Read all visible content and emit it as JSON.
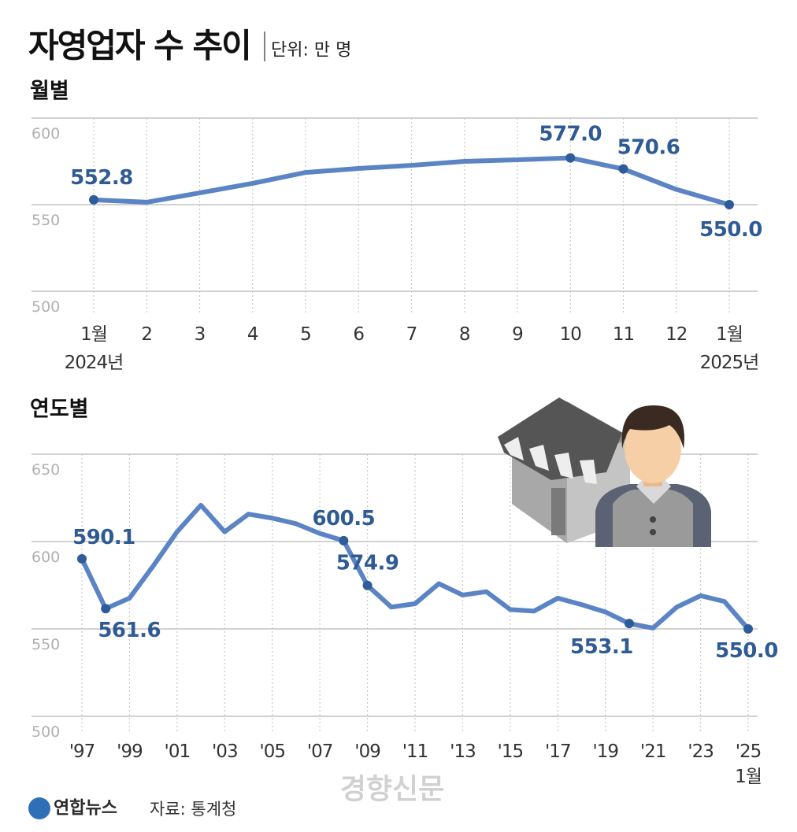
{
  "title": "자영업자 수 추이",
  "unit": "단위: 만 명",
  "source": "자료: 통계청",
  "logo": "연합뉴스",
  "watermark": "경향신문",
  "chart_data": [
    {
      "type": "line",
      "title": "월별",
      "categories": [
        "1월",
        "2",
        "3",
        "4",
        "5",
        "6",
        "7",
        "8",
        "9",
        "10",
        "11",
        "12",
        "1월"
      ],
      "year_labels": [
        "2024년",
        "2025년"
      ],
      "series": [
        {
          "color": "#5b84c4",
          "values": [
            552.8,
            551.4,
            556.8,
            562.3,
            568.6,
            570.9,
            572.7,
            575.0,
            575.9,
            577.0,
            570.6,
            558.8,
            550.0
          ],
          "value_labels": [
            "552.8",
            null,
            null,
            null,
            null,
            null,
            null,
            null,
            null,
            "577.0",
            "570.6",
            null,
            "550.0"
          ]
        }
      ],
      "ylim": [
        500,
        600
      ],
      "yticks": [
        500,
        550,
        600
      ],
      "grid": true
    },
    {
      "type": "line",
      "title": "연도별",
      "categories": [
        "'97",
        null,
        "'99",
        null,
        "'01",
        null,
        "'03",
        null,
        "'05",
        null,
        "'07",
        null,
        "'09",
        null,
        "'11",
        null,
        "'13",
        null,
        "'15",
        null,
        "'17",
        null,
        "'19",
        null,
        "'21",
        null,
        "'23",
        null,
        "'25"
      ],
      "last_sublabel": "1월",
      "series": [
        {
          "color": "#5b84c4",
          "values": [
            590.1,
            561.6,
            567.6,
            586.1,
            605.6,
            620.8,
            605.6,
            615.7,
            613.4,
            610.2,
            604.6,
            600.5,
            574.9,
            562.5,
            564.4,
            575.9,
            569.4,
            571.3,
            561.1,
            560.2,
            567.6,
            563.9,
            559.7,
            553.1,
            550.5,
            562.5,
            569.0,
            565.7,
            550.0
          ],
          "value_labels": [
            "590.1",
            "561.6",
            null,
            null,
            null,
            null,
            null,
            null,
            null,
            null,
            null,
            "600.5",
            "574.9",
            null,
            null,
            null,
            null,
            null,
            null,
            null,
            null,
            null,
            null,
            "553.1",
            null,
            null,
            null,
            null,
            "550.0"
          ]
        }
      ],
      "ylim": [
        500,
        650
      ],
      "yticks": [
        500,
        550,
        600,
        650
      ],
      "grid": true
    }
  ]
}
